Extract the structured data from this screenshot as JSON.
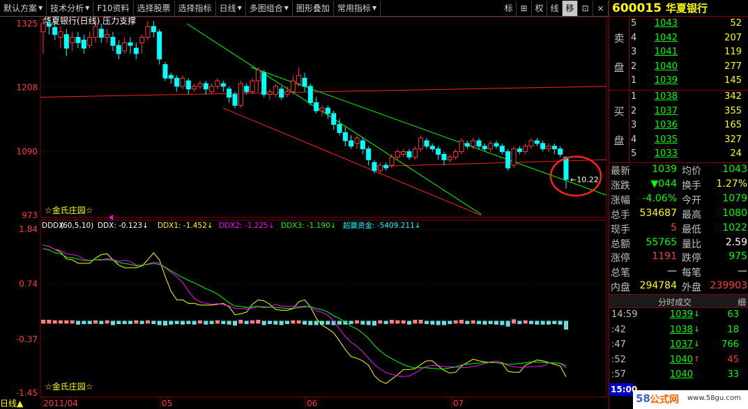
{
  "toolbar": {
    "items": [
      {
        "label": "默认方案",
        "arrow": true
      },
      {
        "label": "技术分析",
        "arrow": true
      },
      {
        "label": "F10资料",
        "arrow": false
      },
      {
        "label": "选择股票",
        "arrow": false
      },
      {
        "label": "选择指标",
        "arrow": false
      },
      {
        "label": "日线",
        "arrow": true
      },
      {
        "label": "多图组合",
        "arrow": true
      },
      {
        "label": "图形叠加",
        "arrow": false
      },
      {
        "label": "常用指标",
        "arrow": true
      }
    ],
    "small": [
      "标",
      "⊞",
      "权",
      "线",
      "移",
      "⊡",
      "×"
    ],
    "selected_small": "移"
  },
  "main_chart": {
    "title": "华夏银行(日线) 压力支撑",
    "watermark": "☆金氏庄园☆",
    "y_ticks": [
      "1325",
      "1208",
      "1090",
      "973"
    ],
    "last_label": "←10.22"
  },
  "indicator": {
    "header": {
      "name": "DDDX",
      "params": "(60,5,10)",
      "ddx": "DDX: -0.123↓",
      "ddx1": "DDX1: -1.452↓",
      "ddx2": "DDX2: -1.225↓",
      "ddx3": "DDX3: -1.190↓",
      "super": "超赢资金: -5409.211↓"
    },
    "y_ticks": [
      "1.84",
      "0.74",
      "-0.37",
      "-1.45"
    ],
    "watermark": "☆金氏庄园☆"
  },
  "x_axis": {
    "labels": [
      "2011/04",
      "05",
      "06",
      "07"
    ]
  },
  "bottom_mode": "日线▲",
  "panel": {
    "code": "600015",
    "name": "华夏银行",
    "sell_label": [
      "卖",
      "盘"
    ],
    "buy_label": [
      "买",
      "盘"
    ],
    "sells": [
      {
        "idx": "5",
        "price": "1043",
        "vol": "52"
      },
      {
        "idx": "4",
        "price": "1042",
        "vol": "207"
      },
      {
        "idx": "3",
        "price": "1041",
        "vol": "119"
      },
      {
        "idx": "2",
        "price": "1040",
        "vol": "277"
      },
      {
        "idx": "1",
        "price": "1039",
        "vol": "145"
      }
    ],
    "buys": [
      {
        "idx": "1",
        "price": "1038",
        "vol": "342"
      },
      {
        "idx": "2",
        "price": "1037",
        "vol": "355"
      },
      {
        "idx": "3",
        "price": "1036",
        "vol": "165"
      },
      {
        "idx": "4",
        "price": "1035",
        "vol": "327"
      },
      {
        "idx": "5",
        "price": "1033",
        "vol": "24"
      }
    ],
    "stats": [
      {
        "l": "最新",
        "lv": "1039",
        "lc": "green",
        "r": "均价",
        "rv": "1043",
        "rc": "green"
      },
      {
        "l": "涨跌",
        "lv": "▼044",
        "lc": "green",
        "r": "换手",
        "rv": "1.27%",
        "rc": "yellow"
      },
      {
        "l": "涨幅",
        "lv": "-4.06%",
        "lc": "green",
        "r": "今开",
        "rv": "1079",
        "rc": "green"
      },
      {
        "l": "总手",
        "lv": "534687",
        "lc": "yellow",
        "r": "最高",
        "rv": "1080",
        "rc": "green"
      },
      {
        "l": "现手",
        "lv": "5",
        "lc": "red",
        "r": "最低",
        "rv": "1022",
        "rc": "green"
      },
      {
        "l": "总额",
        "lv": "55765",
        "lc": "green",
        "r": "量比",
        "rv": "2.59",
        "rc": "white"
      },
      {
        "l": "涨停",
        "lv": "1191",
        "lc": "red",
        "r": "跌停",
        "rv": "975",
        "rc": "green"
      },
      {
        "l": "总笔",
        "lv": "—",
        "lc": "white",
        "r": "每笔",
        "rv": "—",
        "rc": "white"
      },
      {
        "l": "内盘",
        "lv": "294784",
        "lc": "yellow",
        "r": "外盘",
        "rv": "239903",
        "rc": "red"
      }
    ],
    "tick_title": "分时成交",
    "tick_detail": "细",
    "ticks": [
      {
        "time": "14:59",
        "price": "1039",
        "arrow": "↓",
        "dir": "green",
        "vol": "63"
      },
      {
        "time": ":42",
        "price": "1038",
        "arrow": "↓",
        "dir": "green",
        "vol": "18"
      },
      {
        "time": ":47",
        "price": "1037",
        "arrow": "↓",
        "dir": "green",
        "vol": "766"
      },
      {
        "time": ":52",
        "price": "1040",
        "arrow": "↑",
        "dir": "red",
        "vol": "45"
      },
      {
        "time": ":57",
        "price": "1040",
        "arrow": "",
        "dir": "green",
        "vol": "33"
      }
    ],
    "time_badge": "15:00",
    "watermark_num": "58",
    "watermark_text": "公式网",
    "watermark_url": "www.58gu.com"
  },
  "colors": {
    "up": "#ff3b3b",
    "down": "#00ffff",
    "support": "#ff2020",
    "trend": "#00ff00",
    "grid": "#8b0000"
  },
  "chart_data": {
    "type": "candlestick",
    "title": "华夏银行(日线) 压力支撑",
    "ylim": [
      973,
      1325
    ],
    "note_units": "price in 0.01 CNY",
    "candles": [
      [
        1310,
        1325,
        1270,
        1335
      ],
      [
        1325,
        1320,
        1305,
        1340
      ],
      [
        1318,
        1305,
        1295,
        1330
      ],
      [
        1300,
        1310,
        1280,
        1320
      ],
      [
        1305,
        1280,
        1265,
        1315
      ],
      [
        1290,
        1300,
        1275,
        1310
      ],
      [
        1300,
        1290,
        1280,
        1310
      ],
      [
        1295,
        1280,
        1270,
        1305
      ],
      [
        1285,
        1300,
        1280,
        1310
      ],
      [
        1300,
        1320,
        1290,
        1330
      ],
      [
        1315,
        1300,
        1290,
        1325
      ],
      [
        1300,
        1305,
        1290,
        1315
      ],
      [
        1300,
        1285,
        1275,
        1310
      ],
      [
        1285,
        1270,
        1260,
        1295
      ],
      [
        1275,
        1290,
        1270,
        1300
      ],
      [
        1290,
        1285,
        1270,
        1300
      ],
      [
        1280,
        1270,
        1260,
        1290
      ],
      [
        1290,
        1300,
        1270,
        1305
      ],
      [
        1300,
        1320,
        1295,
        1330
      ],
      [
        1320,
        1310,
        1300,
        1330
      ],
      [
        1310,
        1260,
        1250,
        1315
      ],
      [
        1250,
        1225,
        1220,
        1255
      ],
      [
        1230,
        1225,
        1215,
        1235
      ],
      [
        1225,
        1210,
        1200,
        1230
      ],
      [
        1210,
        1225,
        1205,
        1230
      ],
      [
        1220,
        1205,
        1195,
        1225
      ],
      [
        1205,
        1210,
        1200,
        1215
      ],
      [
        1210,
        1215,
        1205,
        1220
      ],
      [
        1215,
        1205,
        1195,
        1220
      ],
      [
        1200,
        1210,
        1195,
        1215
      ],
      [
        1210,
        1220,
        1205,
        1225
      ],
      [
        1215,
        1210,
        1200,
        1220
      ],
      [
        1205,
        1190,
        1180,
        1210
      ],
      [
        1195,
        1175,
        1170,
        1200
      ],
      [
        1175,
        1215,
        1170,
        1220
      ],
      [
        1210,
        1200,
        1195,
        1215
      ],
      [
        1200,
        1220,
        1195,
        1225
      ],
      [
        1220,
        1240,
        1200,
        1245
      ],
      [
        1235,
        1195,
        1190,
        1240
      ],
      [
        1195,
        1200,
        1185,
        1205
      ],
      [
        1195,
        1210,
        1190,
        1215
      ],
      [
        1205,
        1190,
        1185,
        1210
      ],
      [
        1195,
        1200,
        1190,
        1210
      ],
      [
        1200,
        1220,
        1195,
        1230
      ],
      [
        1215,
        1230,
        1210,
        1245
      ],
      [
        1225,
        1210,
        1200,
        1235
      ],
      [
        1210,
        1180,
        1175,
        1215
      ],
      [
        1180,
        1165,
        1160,
        1190
      ],
      [
        1165,
        1170,
        1155,
        1175
      ],
      [
        1170,
        1160,
        1150,
        1175
      ],
      [
        1160,
        1140,
        1130,
        1165
      ],
      [
        1140,
        1125,
        1120,
        1150
      ],
      [
        1125,
        1110,
        1100,
        1135
      ],
      [
        1110,
        1100,
        1095,
        1120
      ],
      [
        1105,
        1115,
        1095,
        1120
      ],
      [
        1110,
        1095,
        1085,
        1115
      ],
      [
        1095,
        1075,
        1065,
        1100
      ],
      [
        1070,
        1055,
        1050,
        1075
      ],
      [
        1055,
        1065,
        1050,
        1070
      ],
      [
        1065,
        1060,
        1055,
        1070
      ],
      [
        1065,
        1080,
        1060,
        1085
      ],
      [
        1080,
        1090,
        1075,
        1095
      ],
      [
        1085,
        1090,
        1080,
        1095
      ],
      [
        1090,
        1080,
        1075,
        1095
      ],
      [
        1080,
        1095,
        1075,
        1100
      ],
      [
        1095,
        1115,
        1090,
        1120
      ],
      [
        1110,
        1100,
        1095,
        1115
      ],
      [
        1100,
        1095,
        1090,
        1105
      ],
      [
        1095,
        1085,
        1075,
        1100
      ],
      [
        1085,
        1075,
        1065,
        1090
      ],
      [
        1075,
        1080,
        1070,
        1085
      ],
      [
        1080,
        1090,
        1075,
        1095
      ],
      [
        1090,
        1110,
        1085,
        1115
      ],
      [
        1105,
        1100,
        1095,
        1110
      ],
      [
        1100,
        1110,
        1095,
        1115
      ],
      [
        1110,
        1100,
        1095,
        1115
      ],
      [
        1100,
        1095,
        1090,
        1105
      ],
      [
        1095,
        1105,
        1090,
        1110
      ],
      [
        1105,
        1100,
        1095,
        1110
      ],
      [
        1100,
        1090,
        1085,
        1105
      ],
      [
        1090,
        1060,
        1055,
        1095
      ],
      [
        1065,
        1095,
        1060,
        1100
      ],
      [
        1095,
        1090,
        1085,
        1100
      ],
      [
        1090,
        1100,
        1085,
        1105
      ],
      [
        1100,
        1110,
        1095,
        1115
      ],
      [
        1110,
        1105,
        1100,
        1115
      ],
      [
        1105,
        1095,
        1090,
        1110
      ],
      [
        1095,
        1100,
        1090,
        1105
      ],
      [
        1100,
        1095,
        1085,
        1105
      ],
      [
        1095,
        1085,
        1080,
        1100
      ],
      [
        1080,
        1039,
        1022,
        1080
      ]
    ],
    "indicator_ylim": [
      -1.45,
      1.84
    ],
    "ddx_bars": [
      0.02,
      0.02,
      0.01,
      0.01,
      0.01,
      0.01,
      -0.02,
      -0.01,
      -0.01,
      0.01,
      -0.01,
      0.01,
      -0.03,
      -0.01,
      -0.01,
      -0.01,
      0.01,
      -0.01,
      0.01,
      -0.01,
      -0.03,
      -0.04,
      -0.02,
      -0.01,
      -0.02,
      -0.01,
      -0.02,
      0.01,
      -0.02,
      -0.01,
      0.01,
      -0.01,
      -0.02,
      -0.04,
      0.02,
      -0.01,
      0.01,
      0.02,
      -0.03,
      -0.01,
      -0.02,
      -0.03,
      -0.01,
      0.01,
      0.01,
      -0.02,
      -0.03,
      -0.03,
      -0.02,
      -0.02,
      -0.03,
      -0.02,
      -0.02,
      -0.01,
      0.01,
      -0.02,
      -0.03,
      -0.04,
      0.01,
      -0.01,
      0.02,
      0.01,
      0.01,
      -0.02,
      0.02,
      0.02,
      -0.01,
      -0.02,
      -0.03,
      -0.03,
      -0.01,
      0.01,
      0.02,
      -0.01,
      0.01,
      -0.01,
      -0.02,
      -0.01,
      -0.02,
      -0.03,
      -0.06,
      0.03,
      -0.01,
      0.01,
      -0.01,
      -0.02,
      -0.02,
      -0.02,
      -0.01,
      -0.02,
      -0.12
    ]
  }
}
